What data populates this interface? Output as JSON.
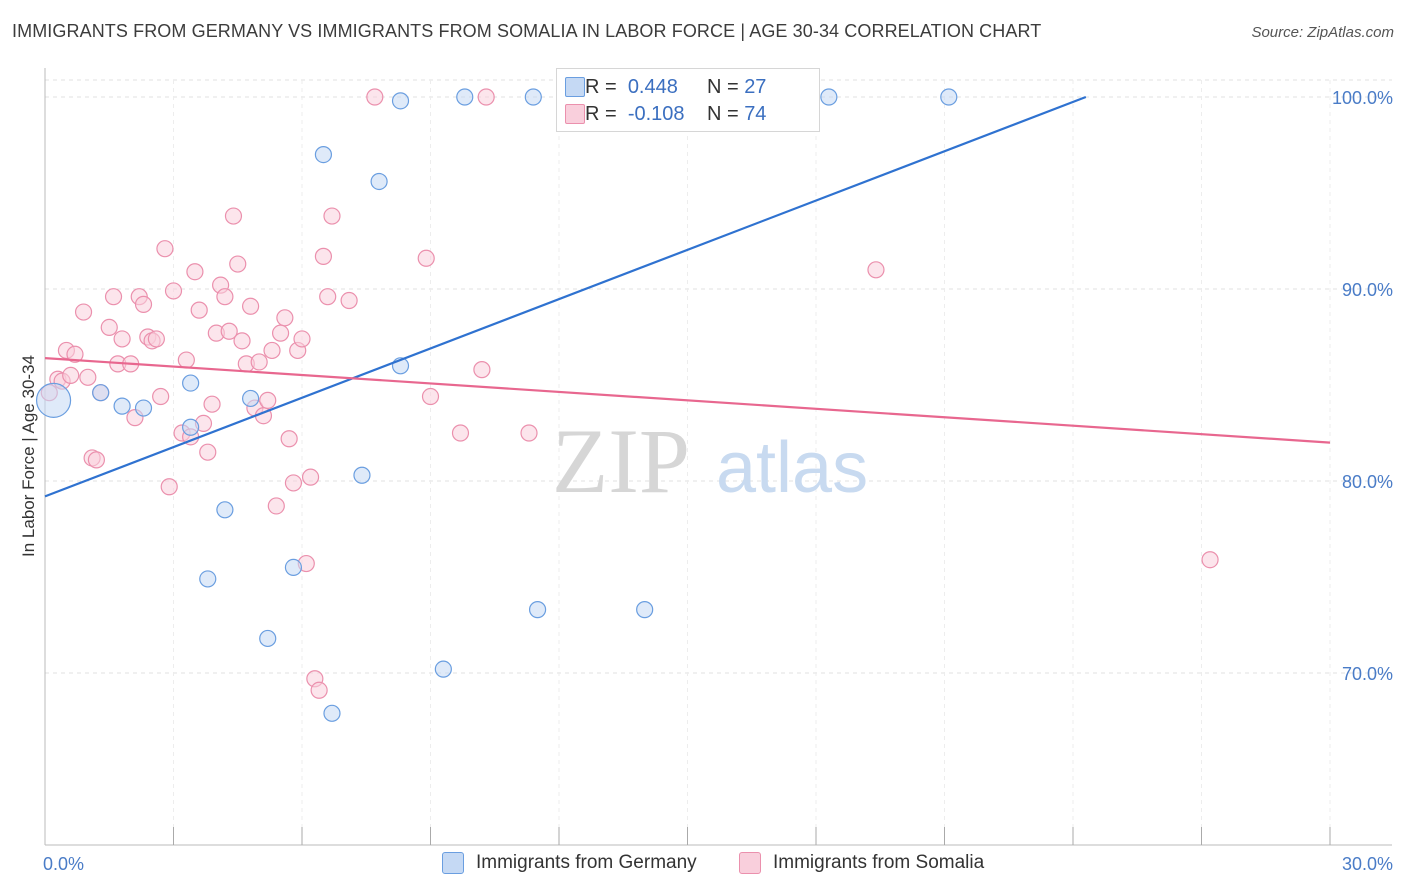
{
  "header": {
    "title": "IMMIGRANTS FROM GERMANY VS IMMIGRANTS FROM SOMALIA IN LABOR FORCE | AGE 30-34 CORRELATION CHART",
    "source": "Source: ZipAtlas.com"
  },
  "watermark": {
    "zip": "ZIP",
    "atlas": "atlas"
  },
  "legend": {
    "germany": {
      "r_label": "R =",
      "r_value": "0.448",
      "n_label": "N =",
      "n_value": "27"
    },
    "somalia": {
      "r_label": "R =",
      "r_value": "-0.108",
      "n_label": "N =",
      "n_value": "74"
    }
  },
  "bottom_legend": {
    "germany": "Immigrants from Germany",
    "somalia": "Immigrants from Somalia"
  },
  "colors": {
    "germany_fill": "#c5d9f4",
    "germany_stroke": "#6a9ee0",
    "germany_line": "#2f72d0",
    "somalia_fill": "#f9cfdc",
    "somalia_stroke": "#eb90ad",
    "somalia_line": "#e8678f",
    "tick_label": "#4a7cc7",
    "grid": "#e0e0e0"
  },
  "chart_data": {
    "type": "scatter",
    "title": "IMMIGRANTS FROM GERMANY VS IMMIGRANTS FROM SOMALIA IN LABOR FORCE | AGE 30-34 CORRELATION CHART",
    "xlabel": "",
    "ylabel": "In Labor Force | Age 30-34",
    "xlim": [
      0,
      30
    ],
    "ylim": [
      60,
      102
    ],
    "x_tick_labels": [
      "0.0%",
      "30.0%"
    ],
    "y_ticks": [
      70,
      80,
      90,
      100
    ],
    "y_tick_labels": [
      "70.0%",
      "80.0%",
      "90.0%",
      "100.0%"
    ],
    "grid": true,
    "legend_position": "top-center",
    "series": [
      {
        "name": "Immigrants from Germany",
        "points": [
          [
            0.2,
            84.2
          ],
          [
            1.3,
            84.6
          ],
          [
            1.8,
            83.9
          ],
          [
            2.3,
            83.8
          ],
          [
            3.4,
            85.1
          ],
          [
            3.4,
            82.8
          ],
          [
            4.2,
            78.5
          ],
          [
            4.8,
            84.3
          ],
          [
            3.8,
            74.9
          ],
          [
            5.8,
            75.5
          ],
          [
            5.2,
            71.8
          ],
          [
            6.7,
            67.9
          ],
          [
            7.4,
            80.3
          ],
          [
            6.5,
            97.0
          ],
          [
            7.8,
            95.6
          ],
          [
            8.3,
            99.8
          ],
          [
            8.3,
            86.0
          ],
          [
            9.3,
            70.2
          ],
          [
            9.8,
            100.0
          ],
          [
            11.4,
            100.0
          ],
          [
            11.5,
            73.3
          ],
          [
            12.8,
            100.0
          ],
          [
            14.0,
            73.3
          ],
          [
            15.1,
            100.0
          ],
          [
            16.8,
            100.0
          ],
          [
            18.3,
            100.0
          ],
          [
            21.1,
            100.0
          ]
        ],
        "trend": {
          "x": [
            0,
            24.3
          ],
          "y": [
            79.2,
            100.0
          ]
        }
      },
      {
        "name": "Immigrants from Somalia",
        "points": [
          [
            0.1,
            84.6
          ],
          [
            0.3,
            85.3
          ],
          [
            0.4,
            85.2
          ],
          [
            0.5,
            86.8
          ],
          [
            0.6,
            85.5
          ],
          [
            0.7,
            86.6
          ],
          [
            0.9,
            88.8
          ],
          [
            1.0,
            85.4
          ],
          [
            1.1,
            81.2
          ],
          [
            1.2,
            81.1
          ],
          [
            1.3,
            84.6
          ],
          [
            1.5,
            88.0
          ],
          [
            1.6,
            89.6
          ],
          [
            1.7,
            86.1
          ],
          [
            1.8,
            87.4
          ],
          [
            2.0,
            86.1
          ],
          [
            2.1,
            83.3
          ],
          [
            2.2,
            89.6
          ],
          [
            2.3,
            89.2
          ],
          [
            2.4,
            87.5
          ],
          [
            2.5,
            87.3
          ],
          [
            2.6,
            87.4
          ],
          [
            2.7,
            84.4
          ],
          [
            2.8,
            92.1
          ],
          [
            2.9,
            79.7
          ],
          [
            3.0,
            89.9
          ],
          [
            3.2,
            82.5
          ],
          [
            3.3,
            86.3
          ],
          [
            3.4,
            82.3
          ],
          [
            3.5,
            90.9
          ],
          [
            3.6,
            88.9
          ],
          [
            3.7,
            83.0
          ],
          [
            3.8,
            81.5
          ],
          [
            3.9,
            84.0
          ],
          [
            4.0,
            87.7
          ],
          [
            4.1,
            90.2
          ],
          [
            4.2,
            89.6
          ],
          [
            4.3,
            87.8
          ],
          [
            4.4,
            93.8
          ],
          [
            4.5,
            91.3
          ],
          [
            4.6,
            87.3
          ],
          [
            4.7,
            86.1
          ],
          [
            4.8,
            89.1
          ],
          [
            4.9,
            83.8
          ],
          [
            5.0,
            86.2
          ],
          [
            5.1,
            83.4
          ],
          [
            5.2,
            84.2
          ],
          [
            5.3,
            86.8
          ],
          [
            5.4,
            78.7
          ],
          [
            5.5,
            87.7
          ],
          [
            5.6,
            88.5
          ],
          [
            5.7,
            82.2
          ],
          [
            5.8,
            79.9
          ],
          [
            5.9,
            86.8
          ],
          [
            6.0,
            87.4
          ],
          [
            6.1,
            75.7
          ],
          [
            6.2,
            80.2
          ],
          [
            6.3,
            69.7
          ],
          [
            6.4,
            69.1
          ],
          [
            6.5,
            91.7
          ],
          [
            6.6,
            89.6
          ],
          [
            6.7,
            93.8
          ],
          [
            7.1,
            89.4
          ],
          [
            7.7,
            100.0
          ],
          [
            8.9,
            91.6
          ],
          [
            9.0,
            84.4
          ],
          [
            9.7,
            82.5
          ],
          [
            10.2,
            85.8
          ],
          [
            10.3,
            100.0
          ],
          [
            11.3,
            82.5
          ],
          [
            13.0,
            100.0
          ],
          [
            15.4,
            100.0
          ],
          [
            19.4,
            91.0
          ],
          [
            27.2,
            75.9
          ]
        ],
        "trend": {
          "x": [
            0,
            30
          ],
          "y": [
            86.4,
            82.0
          ]
        }
      }
    ]
  }
}
